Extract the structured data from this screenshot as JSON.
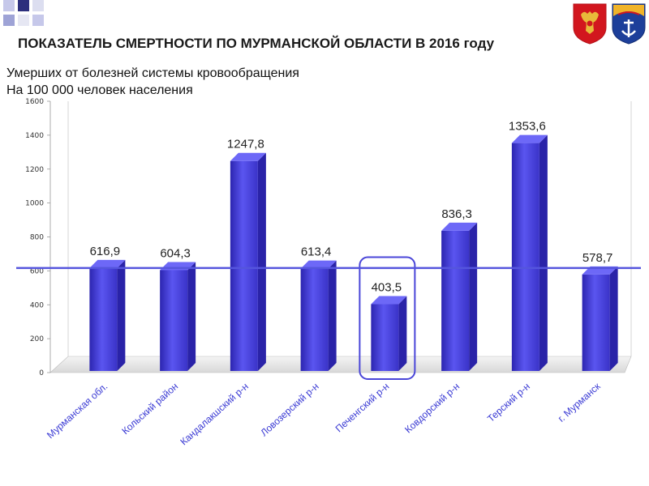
{
  "header": {
    "title": "ПОКАЗАТЕЛЬ СМЕРТНОСТИ ПО МУРМАНСКОЙ ОБЛАСТИ В 2016 году",
    "subtitle_line1": "Умерших от болезней системы кровообращения",
    "subtitle_line2": "На 100 000 человек населения"
  },
  "colors": {
    "bar": "#4b45e6",
    "bar_side": "#2a23a8",
    "average_line": "#5555dd",
    "highlight_box": "#4a46d8",
    "category_text": "#3b3bd4"
  },
  "emblems": [
    "russia-coat-of-arms-icon",
    "murmansk-oblast-coat-of-arms-icon"
  ],
  "chart_data": {
    "type": "bar",
    "categories": [
      "Мурманская обл.",
      "Кольский район",
      "Кандалакшский р-н",
      "Ловозерский р-н",
      "Печенгский р-н",
      "Ковдорский р-н",
      "Терский р-н",
      "г. Мурманск"
    ],
    "values": [
      616.9,
      604.3,
      1247.8,
      613.4,
      403.5,
      836.3,
      1353.6,
      578.7
    ],
    "value_labels": [
      "616,9",
      "604,3",
      "1247,8",
      "613,4",
      "403,5",
      "836,3",
      "1353,6",
      "578,7"
    ],
    "ylim": [
      0,
      1600
    ],
    "yticks": [
      0,
      200,
      400,
      600,
      800,
      1000,
      1200,
      1400,
      1600
    ],
    "reference_line": 616.9,
    "highlighted_category": "Печенгский р-н",
    "grid": false,
    "title": "",
    "xlabel": "",
    "ylabel": ""
  }
}
